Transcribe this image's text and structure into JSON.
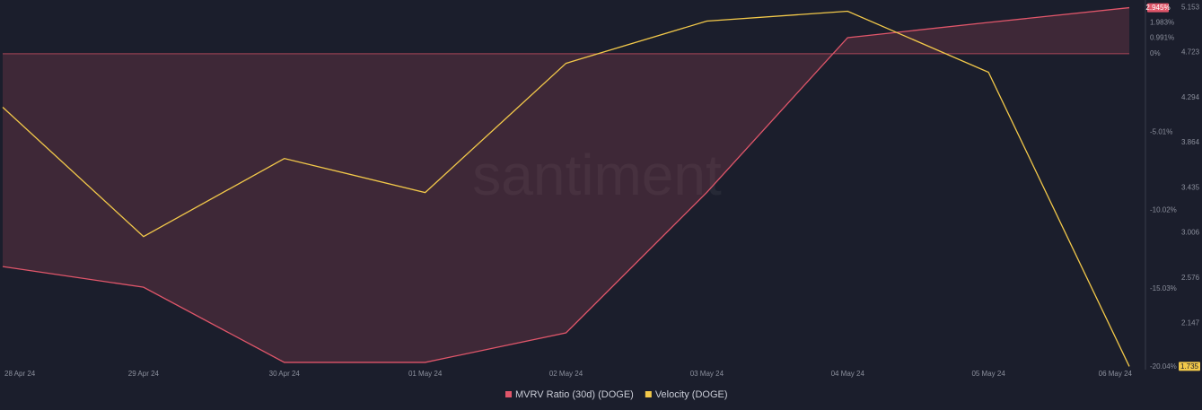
{
  "chart_data": {
    "type": "line",
    "watermark": "santiment",
    "categories": [
      "28 Apr 24",
      "29 Apr 24",
      "30 Apr 24",
      "01 May 24",
      "02 May 24",
      "03 May 24",
      "04 May 24",
      "05 May 24",
      "06 May 24"
    ],
    "series": [
      {
        "name": "MVRV Ratio (30d) (DOGE)",
        "color": "#e0566a",
        "fill": true,
        "values": [
          -13.62,
          -14.94,
          -19.75,
          -19.75,
          -17.86,
          -8.87,
          1.03,
          2.0,
          2.945
        ],
        "value_labels": [
          null,
          null,
          null,
          null,
          null,
          null,
          null,
          null,
          "2.945%"
        ]
      },
      {
        "name": "Velocity (DOGE)",
        "color": "#f3c94a",
        "axis": "y2",
        "values": [
          4.202,
          2.971,
          3.714,
          3.39,
          4.62,
          5.022,
          5.116,
          4.535,
          1.735
        ],
        "value_labels": [
          null,
          null,
          null,
          null,
          null,
          null,
          null,
          null,
          "1.735"
        ]
      }
    ],
    "ylim": [
      -20.04,
      3.15
    ],
    "yticks": [
      {
        "value": 1.983,
        "label": "1.983%"
      },
      {
        "value": 0.991,
        "label": "0.991%"
      },
      {
        "value": 0,
        "label": "0%"
      },
      {
        "value": -5.01,
        "label": "-5.01%"
      },
      {
        "value": -10.02,
        "label": "-10.02%"
      },
      {
        "value": -15.03,
        "label": "-15.03%"
      },
      {
        "value": -20.04,
        "label": "-20.04%"
      }
    ],
    "y2lim": [
      1.73,
      5.18
    ],
    "y2ticks": [
      5.153,
      4.723,
      4.294,
      3.864,
      3.435,
      3.006,
      2.576,
      2.147
    ],
    "grid": false,
    "legend": "bottom"
  }
}
